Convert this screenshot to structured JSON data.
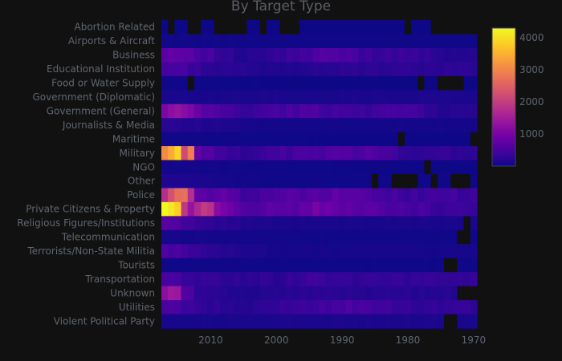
{
  "chart_data": {
    "type": "heatmap",
    "title": "By Target Type",
    "xlabel": "",
    "ylabel": "",
    "x_range": [
      2017,
      1970
    ],
    "x_ticks": [
      2010,
      2000,
      1990,
      1980,
      1970
    ],
    "y_categories": [
      "Abortion Related",
      "Airports & Aircraft",
      "Business",
      "Educational Institution",
      "Food or Water Supply",
      "Government (Diplomatic)",
      "Government (General)",
      "Journalists & Media",
      "Maritime",
      "Military",
      "NGO",
      "Other",
      "Police",
      "Private Citizens & Property",
      "Religious Figures/Institutions",
      "Telecommunication",
      "Terrorists/Non-State Militia",
      "Tourists",
      "Transportation",
      "Unknown",
      "Utilities",
      "Violent Political Party"
    ],
    "colorbar": {
      "ticks": [
        1000,
        2000,
        3000,
        4000
      ],
      "min": 0,
      "max": 4300,
      "colorscale": "plasma"
    },
    "grid": false,
    "series": [
      {
        "values_approx_by_year": {
          "Business": {
            "2017": 800,
            "2014": 750,
            "2012": 600,
            "2008": 300,
            "2005": 150,
            "1995": 450,
            "1992": 600,
            "1985": 350,
            "1980": 400,
            "1975": 200
          },
          "Government (General)": {
            "2017": 1000,
            "2015": 1300,
            "2013": 900,
            "2010": 600,
            "2005": 350,
            "1995": 550,
            "1990": 400,
            "1980": 450,
            "1975": 200
          },
          "Military": {
            "2017": 3000,
            "2015": 3800,
            "2014": 2600,
            "2013": 2900,
            "2012": 650,
            "2005": 300,
            "1995": 500,
            "1990": 600,
            "1985": 550,
            "1980": 300
          },
          "Police": {
            "2017": 2000,
            "2015": 2400,
            "2014": 2600,
            "2013": 1700,
            "2012": 650,
            "2008": 700,
            "2005": 450,
            "1992": 700,
            "1988": 600,
            "1980": 400
          },
          "Private Citizens & Property": {
            "2017": 4200,
            "2015": 4300,
            "2014": 2200,
            "2013": 1600,
            "2010": 1800,
            "2008": 900,
            "2005": 600,
            "1997": 700,
            "1995": 900,
            "1990": 750,
            "1985": 600,
            "1980": 500,
            "1975": 350
          },
          "Unknown": {
            "2017": 1300,
            "2015": 1400,
            "2014": 700,
            "2012": 250,
            "2005": 150,
            "1995": 250,
            "1985": 200
          },
          "Utilities": {
            "2017": 450,
            "2015": 500,
            "2012": 300,
            "2005": 200,
            "1990": 500,
            "1985": 450,
            "1980": 300
          },
          "Educational Institution": {
            "2017": 450,
            "2015": 500,
            "2010": 250,
            "2000": 150,
            "1990": 250
          },
          "Terrorists/Non-State Militia": {
            "2017": 500,
            "2014": 450,
            "2010": 250,
            "2000": 80
          },
          "Transportation": {
            "2017": 450,
            "2014": 400,
            "2010": 300,
            "2000": 250,
            "1995": 400,
            "1990": 300
          },
          "Religious Figures/Institutions": {
            "2017": 600,
            "2014": 500,
            "2010": 250,
            "2000": 100
          },
          "Journalists & Media": {
            "2017": 250,
            "2014": 200,
            "2000": 60
          },
          "Other": {
            "2017": 150,
            "2000": 20
          },
          "Government (Diplomatic)": {
            "2017": 100,
            "1990": 120
          },
          "Telecommunication": {
            "2017": 80,
            "1990": 30
          },
          "NGO": {
            "2017": 60,
            "1990": 10
          },
          "Airports & Aircraft": {
            "2017": 40,
            "1990": 30
          },
          "Food or Water Supply": {
            "2017": 20,
            "1990": 5
          },
          "Maritime": {
            "2017": 30,
            "1990": 10
          },
          "Tourists": {
            "2017": 30,
            "1990": 15
          },
          "Abortion Related": {
            "2017": 5,
            "1990": 8
          },
          "Violent Political Party": {
            "2017": 80,
            "1990": 120
          }
        },
        "missing_cells": {
          "Abortion Related": [
            2016,
            2013,
            2012,
            2009,
            2008,
            2007,
            2006,
            2005,
            2002,
            1999,
            1998,
            1997,
            1980,
            1976,
            1975,
            1974,
            1973,
            1972,
            1971,
            1970
          ],
          "Food or Water Supply": [
            2013,
            1978,
            1975,
            1974,
            1973,
            1972
          ],
          "Maritime": [
            1981,
            1970
          ],
          "NGO": [
            1977
          ],
          "Other": [
            1985,
            1982,
            1981,
            1980,
            1979,
            1976,
            1973,
            1972,
            1971
          ],
          "Religious Figures/Institutions": [
            1971
          ],
          "Telecommunication": [
            1972,
            1971
          ],
          "Tourists": [
            1974,
            1973
          ],
          "Unknown": [
            1972,
            1971,
            1970
          ],
          "Violent Political Party": [
            1974,
            1973
          ]
        }
      }
    ]
  }
}
